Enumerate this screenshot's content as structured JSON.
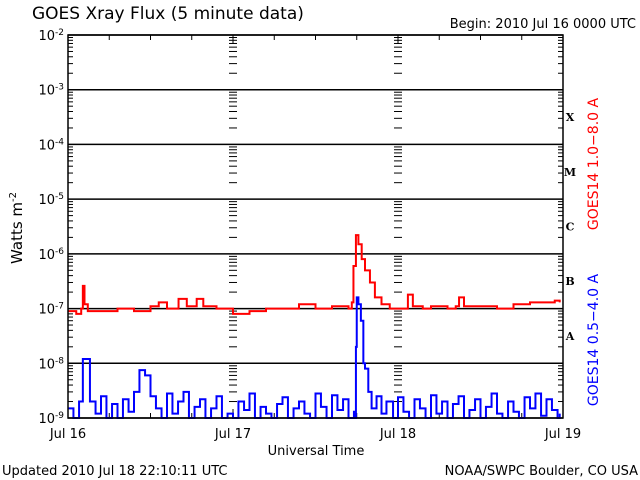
{
  "chart_data": {
    "type": "line",
    "title": "GOES Xray Flux (5 minute data)",
    "begin_label": "Begin:  2010 Jul 16 0000 UTC",
    "xlabel": "Universal Time",
    "ylabel": "Watts m",
    "ylabel_exp": "-2",
    "footer_left": "Updated 2010 Jul 18 22:10:11 UTC",
    "footer_right": "NOAA/SWPC Boulder, CO USA",
    "x_unit": "days since 2010 Jul 16 0000 UTC",
    "xlim": [
      0,
      3
    ],
    "x_ticks": [
      {
        "value": 0,
        "label": "Jul 16"
      },
      {
        "value": 1,
        "label": "Jul 17"
      },
      {
        "value": 2,
        "label": "Jul 18"
      },
      {
        "value": 3,
        "label": "Jul 19"
      }
    ],
    "yscale": "log",
    "ylim": [
      1e-09,
      0.01
    ],
    "y_ticks": [
      {
        "exp": -2
      },
      {
        "exp": -3
      },
      {
        "exp": -4
      },
      {
        "exp": -5
      },
      {
        "exp": -6
      },
      {
        "exp": -7
      },
      {
        "exp": -8
      },
      {
        "exp": -9
      }
    ],
    "y_tick_base": "10",
    "grid": "horizontal at each decade",
    "flare_classes": [
      {
        "label": "X",
        "exp": -3.5
      },
      {
        "label": "M",
        "exp": -4.5
      },
      {
        "label": "C",
        "exp": -5.5
      },
      {
        "label": "B",
        "exp": -6.5
      },
      {
        "label": "A",
        "exp": -7.5
      }
    ],
    "series": [
      {
        "name": "GOES14 1.0−8.0 A",
        "color": "#ff0000",
        "x": [
          0,
          0.05,
          0.08,
          0.09,
          0.1,
          0.12,
          0.2,
          0.3,
          0.4,
          0.5,
          0.55,
          0.6,
          0.67,
          0.72,
          0.78,
          0.82,
          0.9,
          1.0,
          1.1,
          1.2,
          1.3,
          1.4,
          1.5,
          1.6,
          1.7,
          1.72,
          1.73,
          1.745,
          1.76,
          1.78,
          1.8,
          1.83,
          1.86,
          1.9,
          1.95,
          2.0,
          2.04,
          2.06,
          2.09,
          2.15,
          2.2,
          2.3,
          2.35,
          2.37,
          2.4,
          2.5,
          2.6,
          2.7,
          2.8,
          2.9,
          2.95,
          2.98
        ],
        "y": [
          9e-08,
          8e-08,
          1e-07,
          2.6e-07,
          1.2e-07,
          9e-08,
          9e-08,
          1e-07,
          9e-08,
          1.1e-07,
          1.3e-07,
          1e-07,
          1.5e-07,
          1.1e-07,
          1.5e-07,
          1.1e-07,
          1e-07,
          8e-08,
          9e-08,
          1e-07,
          1e-07,
          1.2e-07,
          1e-07,
          1.1e-07,
          1e-07,
          1.3e-07,
          6e-07,
          2.2e-06,
          1.5e-06,
          8e-07,
          5e-07,
          3e-07,
          1.6e-07,
          1.2e-07,
          1e-07,
          1e-07,
          1e-07,
          1.8e-07,
          1.1e-07,
          1e-07,
          1.1e-07,
          1e-07,
          1.1e-07,
          1.6e-07,
          1.1e-07,
          1.1e-07,
          1e-07,
          1.2e-07,
          1.3e-07,
          1.3e-07,
          1.4e-07,
          1.3e-07
        ]
      },
      {
        "name": "GOES14 0.5−4.0 A",
        "color": "#0000ff",
        "x": [
          0,
          0.033,
          0.067,
          0.09,
          0.133,
          0.167,
          0.2,
          0.233,
          0.267,
          0.3,
          0.333,
          0.367,
          0.4,
          0.433,
          0.467,
          0.5,
          0.533,
          0.567,
          0.6,
          0.633,
          0.667,
          0.7,
          0.733,
          0.767,
          0.8,
          0.833,
          0.867,
          0.9,
          0.933,
          0.967,
          1.0,
          1.033,
          1.067,
          1.1,
          1.133,
          1.167,
          1.2,
          1.233,
          1.267,
          1.3,
          1.333,
          1.367,
          1.4,
          1.433,
          1.467,
          1.5,
          1.533,
          1.567,
          1.6,
          1.633,
          1.667,
          1.7,
          1.733,
          1.74,
          1.745,
          1.75,
          1.76,
          1.775,
          1.79,
          1.8,
          1.82,
          1.84,
          1.87,
          1.9,
          1.93,
          1.97,
          2.0,
          2.033,
          2.067,
          2.1,
          2.133,
          2.167,
          2.2,
          2.233,
          2.267,
          2.3,
          2.333,
          2.367,
          2.4,
          2.433,
          2.467,
          2.5,
          2.533,
          2.567,
          2.6,
          2.633,
          2.667,
          2.7,
          2.733,
          2.767,
          2.8,
          2.833,
          2.867,
          2.9,
          2.933,
          2.967,
          2.98
        ],
        "y": [
          1.5e-09,
          1e-09,
          2e-09,
          1.2e-08,
          2e-09,
          1.2e-09,
          2.5e-09,
          1e-09,
          1.8e-09,
          1e-09,
          2.2e-09,
          1.3e-09,
          3e-09,
          7.5e-09,
          6e-09,
          2.5e-09,
          1.5e-09,
          1e-09,
          2.8e-09,
          1.2e-09,
          2e-09,
          3e-09,
          1e-09,
          1.6e-09,
          2.2e-09,
          1e-09,
          1.5e-09,
          2.5e-09,
          1e-09,
          1.2e-09,
          1e-09,
          2e-09,
          1.4e-09,
          2.8e-09,
          1e-09,
          1.6e-09,
          1.2e-09,
          1e-09,
          1.8e-09,
          2.4e-09,
          1e-09,
          1.5e-09,
          2e-09,
          1.2e-09,
          1e-09,
          2.8e-09,
          1.6e-09,
          1e-09,
          2.6e-09,
          1.4e-09,
          2.2e-09,
          1e-09,
          1.3e-09,
          1e-09,
          2e-08,
          1.6e-07,
          1.2e-07,
          6e-08,
          1e-08,
          8e-09,
          3e-09,
          1.5e-09,
          2.5e-09,
          1.2e-09,
          2e-09,
          1e-09,
          2.4e-09,
          1.3e-09,
          1e-09,
          2.2e-09,
          1.5e-09,
          1e-09,
          2.6e-09,
          1.2e-09,
          2e-09,
          1e-09,
          1.8e-09,
          2.5e-09,
          1e-09,
          1.4e-09,
          2.2e-09,
          1e-09,
          1.6e-09,
          2.8e-09,
          1.2e-09,
          1e-09,
          2e-09,
          1.3e-09,
          1e-09,
          2.4e-09,
          1.5e-09,
          2.8e-09,
          1.1e-09,
          2.2e-09,
          1.4e-09,
          1e-09,
          1.2e-09
        ]
      }
    ]
  }
}
